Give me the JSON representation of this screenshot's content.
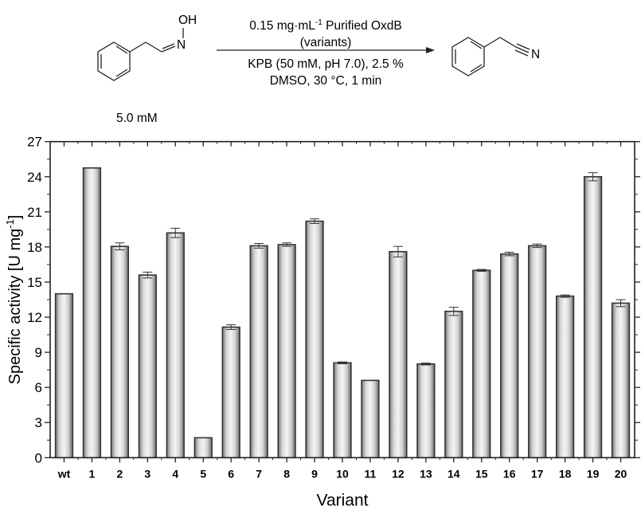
{
  "scheme": {
    "substrate": {
      "name": "phenylacetaldoxime",
      "atom_labels": [
        "OH",
        "N"
      ],
      "concentration": "5.0 mM"
    },
    "product": {
      "name": "phenylacetonitrile",
      "atom_labels": [
        "N"
      ]
    },
    "conditions_above": [
      "0.15 mg·mL",
      "-1",
      " Purified OxdB",
      "(variants)"
    ],
    "conditions_below": [
      "KPB (50 mM, pH 7.0),  2.5 %",
      "DMSO, 30 °C, 1 min"
    ]
  },
  "chart_data": {
    "type": "bar",
    "title": "",
    "xlabel": "Variant",
    "ylabel": "Specific activity [U mg-1]",
    "ylabel_main": "Specific activity [U mg",
    "ylabel_sup": "-1",
    "ylabel_end": "]",
    "ylim": [
      0,
      27
    ],
    "yticks": [
      0,
      3,
      6,
      9,
      12,
      15,
      18,
      21,
      24,
      27
    ],
    "grid": false,
    "legend": null,
    "categories": [
      "wt",
      "1",
      "2",
      "3",
      "4",
      "5",
      "6",
      "7",
      "8",
      "9",
      "10",
      "11",
      "12",
      "13",
      "14",
      "15",
      "16",
      "17",
      "18",
      "19",
      "20"
    ],
    "values": [
      14.0,
      24.75,
      18.05,
      15.6,
      19.2,
      1.7,
      11.15,
      18.1,
      18.2,
      20.2,
      8.1,
      6.6,
      17.6,
      8.0,
      12.5,
      16.0,
      17.4,
      18.1,
      13.8,
      24.0,
      13.2
    ],
    "errors": [
      0,
      0,
      0.3,
      0.25,
      0.4,
      0,
      0.2,
      0.2,
      0.15,
      0.2,
      0.08,
      0,
      0.45,
      0.08,
      0.35,
      0.08,
      0.15,
      0.15,
      0.1,
      0.35,
      0.3
    ],
    "bar_color": "#c8c8c8",
    "bar_edge": "#333333"
  }
}
